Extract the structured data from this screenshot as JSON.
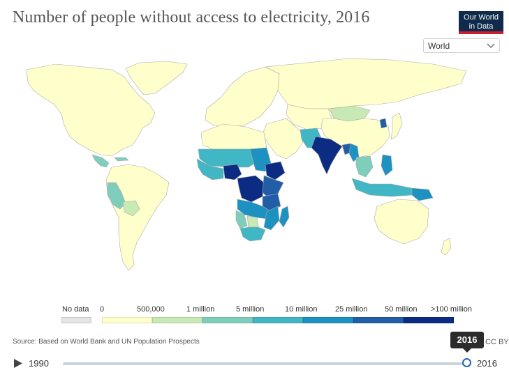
{
  "title": "Number of people without access to electricity, 2016",
  "logo": {
    "line1": "Our World",
    "line2": "in Data"
  },
  "region_select": {
    "value": "World"
  },
  "colors": {
    "nodata": "#e4e4e4",
    "c0": "#ffffcc",
    "c1": "#c7e9b4",
    "c2": "#7fcdbb",
    "c3": "#41b6c4",
    "c4": "#1d91c0",
    "c5": "#225ea8",
    "c6": "#0c2c84",
    "ocean": "#ffffff",
    "border": "#aaaaaa"
  },
  "legend": {
    "nodata_label": "No data",
    "labels": [
      "0",
      "500,000",
      "1 million",
      "5 million",
      "10 million",
      "25 million",
      "50 million",
      ">100 million"
    ]
  },
  "source": "Source: Based on World Bank and UN Population Prospects",
  "license": "CC BY",
  "timeline": {
    "start": "1990",
    "end": "2016",
    "current": "2016",
    "position": 1.0
  },
  "map_regions": [
    {
      "name": "north-america",
      "color": "c0"
    },
    {
      "name": "greenland",
      "color": "c0"
    },
    {
      "name": "central-america",
      "color": "c2"
    },
    {
      "name": "caribbean",
      "color": "c2"
    },
    {
      "name": "south-america",
      "color": "c0"
    },
    {
      "name": "peru",
      "color": "c2"
    },
    {
      "name": "bolivia",
      "color": "c1"
    },
    {
      "name": "europe",
      "color": "c0"
    },
    {
      "name": "russia",
      "color": "c0"
    },
    {
      "name": "middle-east",
      "color": "c0"
    },
    {
      "name": "central-asia",
      "color": "c0"
    },
    {
      "name": "mongolia",
      "color": "c1"
    },
    {
      "name": "china",
      "color": "c0"
    },
    {
      "name": "north-korea",
      "color": "c5"
    },
    {
      "name": "japan",
      "color": "c0"
    },
    {
      "name": "north-africa",
      "color": "c0"
    },
    {
      "name": "sahel",
      "color": "c3"
    },
    {
      "name": "west-africa",
      "color": "c3"
    },
    {
      "name": "nigeria",
      "color": "c6"
    },
    {
      "name": "sudan",
      "color": "c4"
    },
    {
      "name": "ethiopia",
      "color": "c6"
    },
    {
      "name": "dr-congo",
      "color": "c6"
    },
    {
      "name": "east-africa",
      "color": "c5"
    },
    {
      "name": "tanzania",
      "color": "c5"
    },
    {
      "name": "angola-zambia",
      "color": "c4"
    },
    {
      "name": "namibia",
      "color": "c2"
    },
    {
      "name": "botswana",
      "color": "c1"
    },
    {
      "name": "south-africa",
      "color": "c3"
    },
    {
      "name": "mozambique",
      "color": "c4"
    },
    {
      "name": "madagascar",
      "color": "c4"
    },
    {
      "name": "afghanistan-pakistan",
      "color": "c3"
    },
    {
      "name": "india",
      "color": "c6"
    },
    {
      "name": "bangladesh",
      "color": "c5"
    },
    {
      "name": "myanmar",
      "color": "c4"
    },
    {
      "name": "southeast-asia",
      "color": "c2"
    },
    {
      "name": "philippines",
      "color": "c4"
    },
    {
      "name": "indonesia",
      "color": "c3"
    },
    {
      "name": "papua-new-guinea",
      "color": "c4"
    },
    {
      "name": "australia",
      "color": "c0"
    },
    {
      "name": "new-zealand",
      "color": "c0"
    }
  ]
}
